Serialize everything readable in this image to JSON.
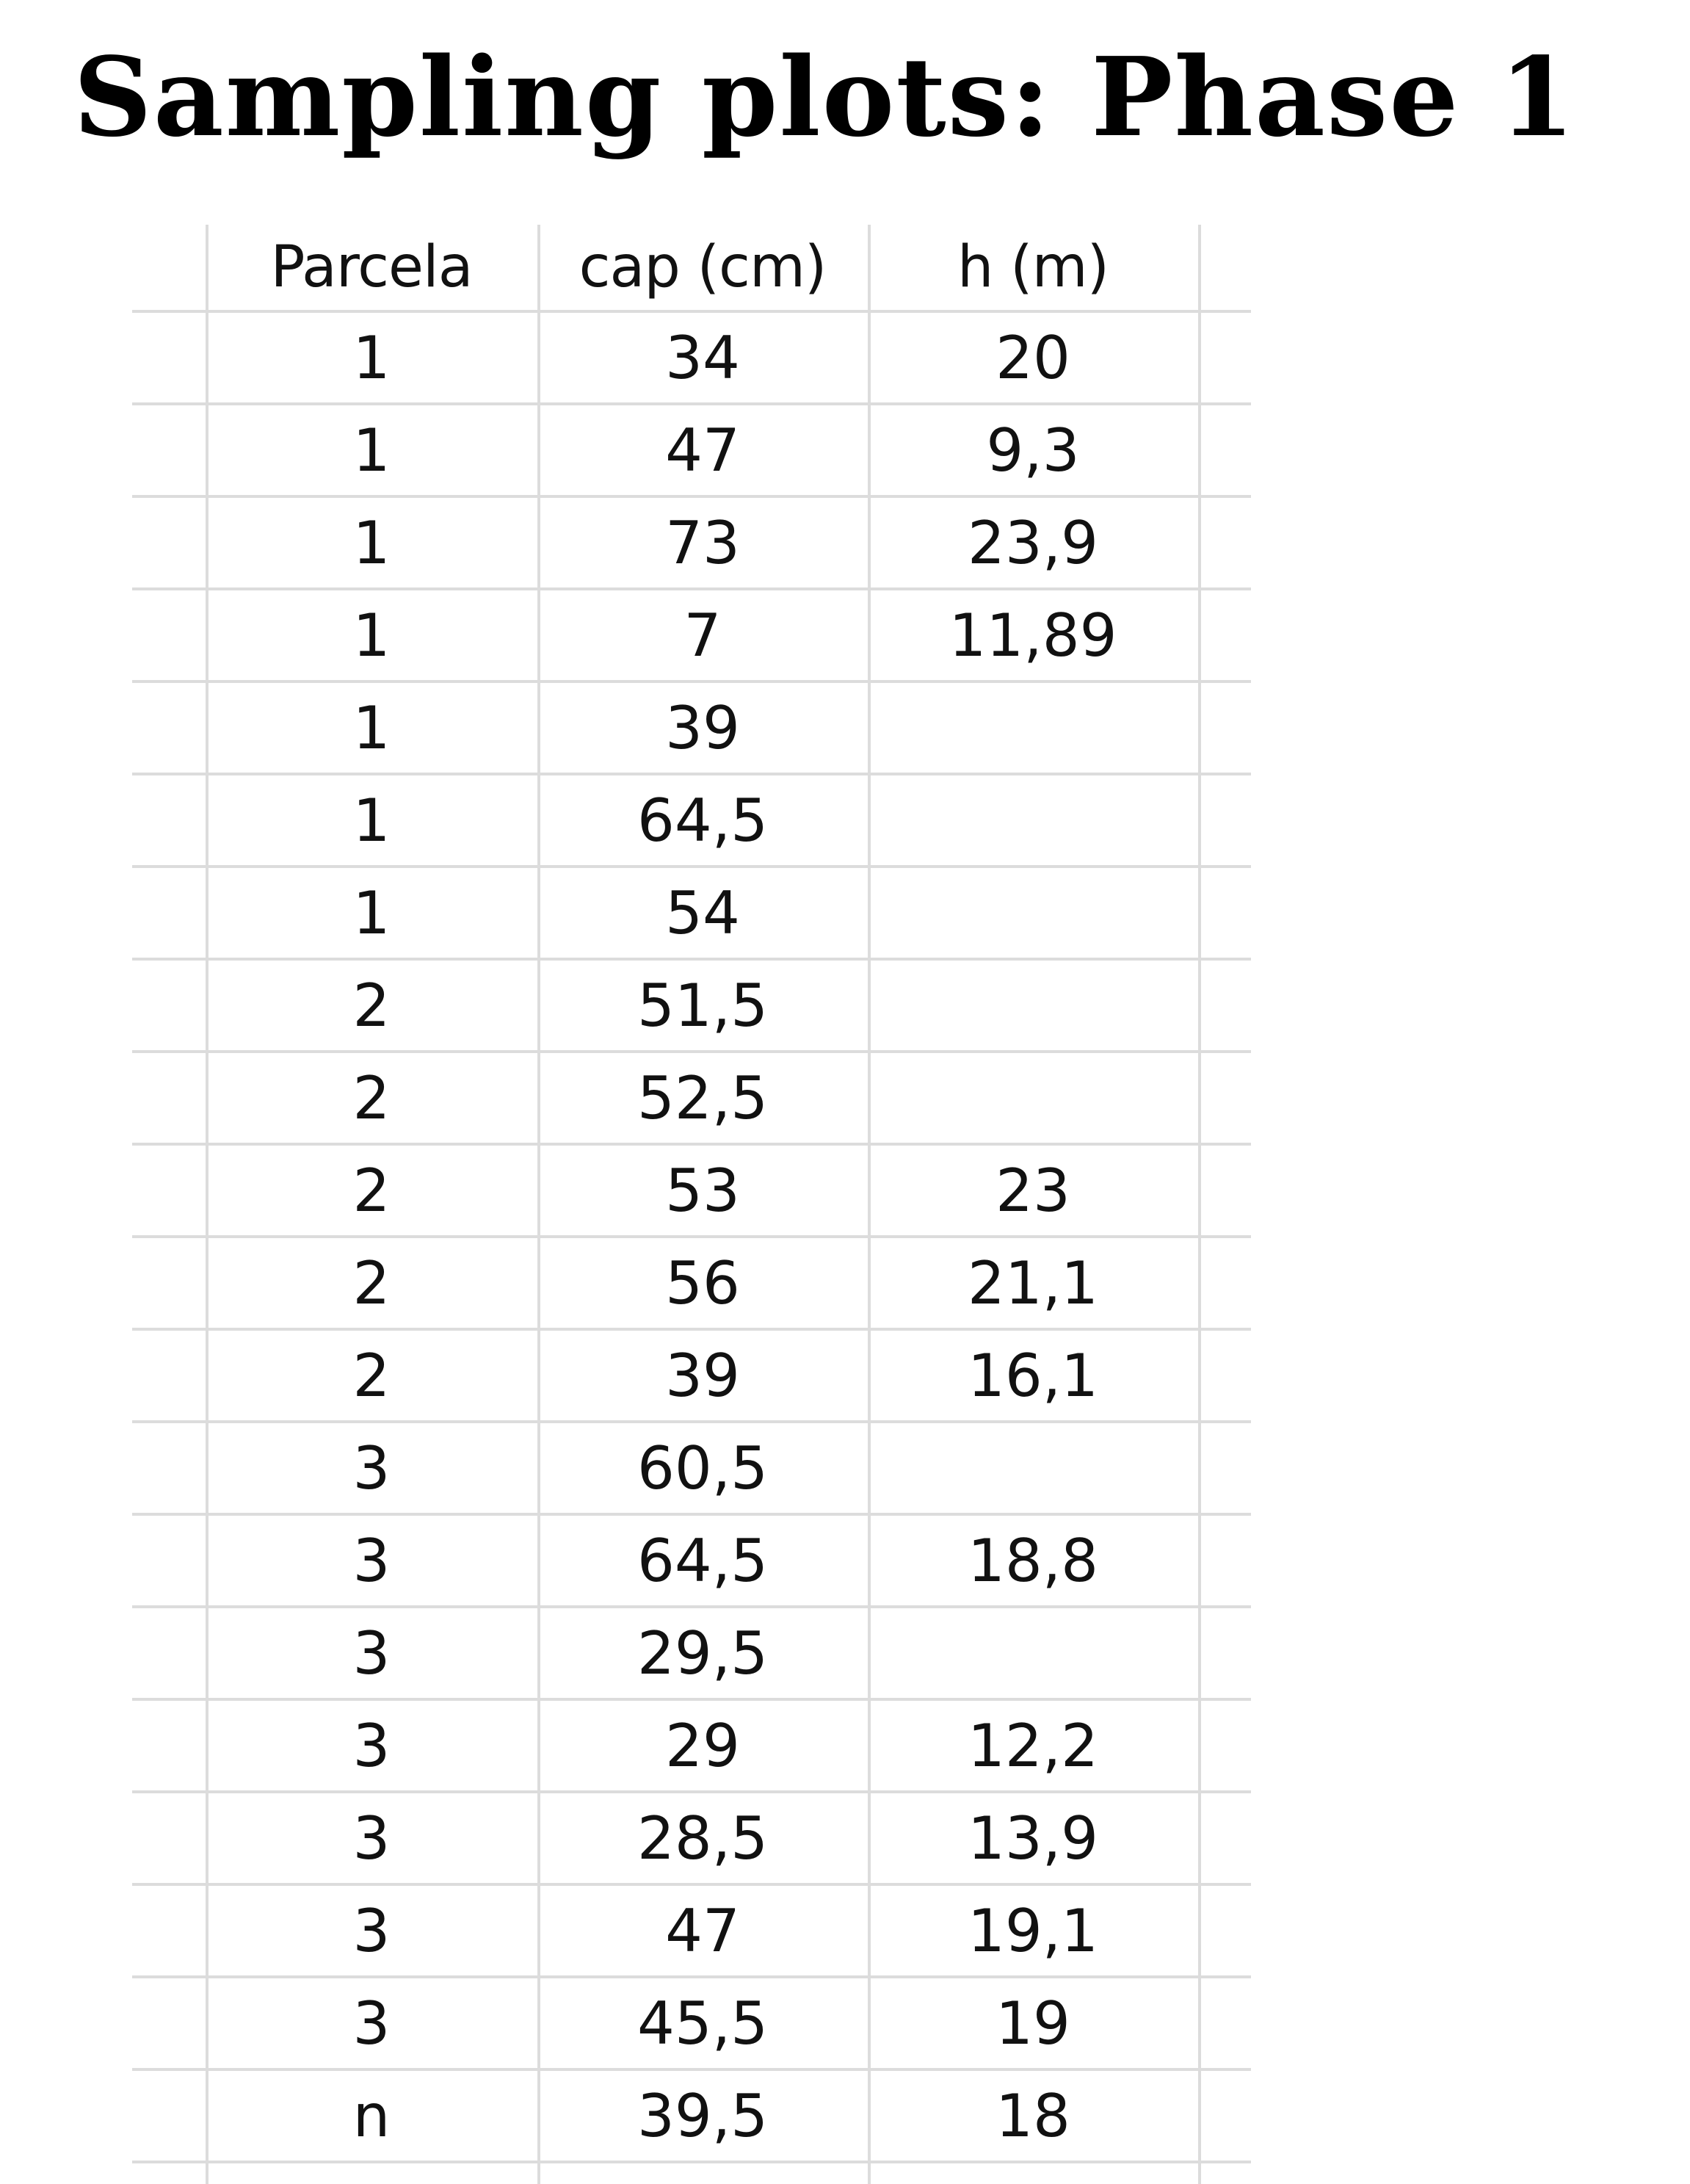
{
  "title": "Sampling plots: Phase 1",
  "table": {
    "headers": [
      "Parcela",
      "cap (cm)",
      "h (m)"
    ],
    "rows": [
      [
        "1",
        "34",
        "20"
      ],
      [
        "1",
        "47",
        "9,3"
      ],
      [
        "1",
        "73",
        "23,9"
      ],
      [
        "1",
        "7",
        "11,89"
      ],
      [
        "1",
        "39",
        ""
      ],
      [
        "1",
        "64,5",
        ""
      ],
      [
        "1",
        "54",
        ""
      ],
      [
        "2",
        "51,5",
        ""
      ],
      [
        "2",
        "52,5",
        ""
      ],
      [
        "2",
        "53",
        "23"
      ],
      [
        "2",
        "56",
        "21,1"
      ],
      [
        "2",
        "39",
        "16,1"
      ],
      [
        "3",
        "60,5",
        ""
      ],
      [
        "3",
        "64,5",
        "18,8"
      ],
      [
        "3",
        "29,5",
        ""
      ],
      [
        "3",
        "29",
        "12,2"
      ],
      [
        "3",
        "28,5",
        "13,9"
      ],
      [
        "3",
        "47",
        "19,1"
      ],
      [
        "3",
        "45,5",
        "19"
      ],
      [
        "n",
        "39,5",
        "18"
      ]
    ]
  },
  "colors": {
    "grid_line": "#dcdcdc",
    "text": "#111111",
    "background": "#ffffff"
  }
}
